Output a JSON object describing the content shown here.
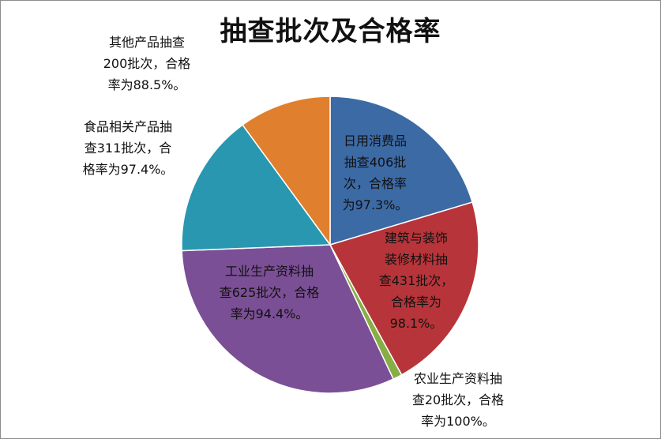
{
  "chart_data": {
    "type": "pie",
    "title": "抽查批次及合格率",
    "slices": [
      {
        "category": "日用消费品",
        "batches": 406,
        "pass_rate_pct": 97.3,
        "color": "#3c6aa5",
        "label": "日用消费品\n抽查406批\n次，合格率\n为97.3%。"
      },
      {
        "category": "建筑与装饰装修材料",
        "batches": 431,
        "pass_rate_pct": 98.1,
        "color": "#b7353a",
        "label": "建筑与装饰\n装修材料抽\n查431批次，\n合格率为\n98.1%。"
      },
      {
        "category": "农业生产资料",
        "batches": 20,
        "pass_rate_pct": 100,
        "color": "#86ae45",
        "label": "农业生产资料抽\n查20批次，合格\n率为100%。"
      },
      {
        "category": "工业生产资料",
        "batches": 625,
        "pass_rate_pct": 94.4,
        "color": "#7b4f95",
        "label": "工业生产资料抽\n查625批次，合格\n率为94.4%。"
      },
      {
        "category": "食品相关产品",
        "batches": 311,
        "pass_rate_pct": 97.4,
        "color": "#2997b0",
        "label": "食品相关产品抽\n查311批次，合\n格率为97.4%。"
      },
      {
        "category": "其他产品",
        "batches": 200,
        "pass_rate_pct": 88.5,
        "color": "#e07f2e",
        "label": "其他产品抽查\n200批次，合格\n率为88.5%。"
      }
    ]
  }
}
